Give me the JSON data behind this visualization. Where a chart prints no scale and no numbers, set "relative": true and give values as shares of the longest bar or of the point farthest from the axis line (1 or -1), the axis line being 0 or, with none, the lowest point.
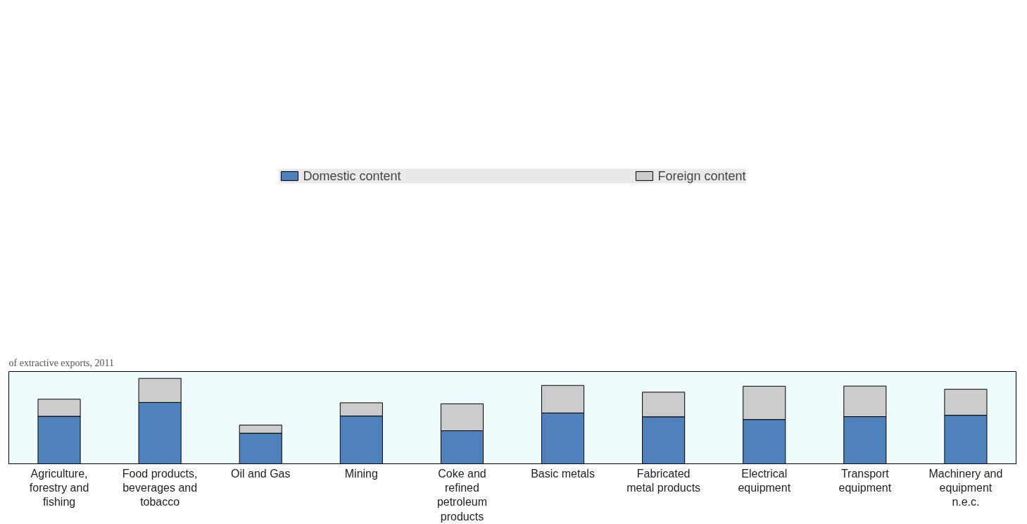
{
  "chart_data": {
    "type": "bar",
    "subtitle": "of extractive exports, 2011",
    "categories": [
      "Agriculture, forestry and fishing",
      "Food products, beverages and tobacco",
      "Oil and Gas",
      "Mining",
      "Coke and refined petroleum products",
      "Basic metals",
      "Fabricated metal products",
      "Electrical equipment",
      "Transport equipment",
      "Machinery and equipment n.e.c."
    ],
    "stacked": true,
    "relative": true,
    "legend": "top",
    "grid": false,
    "series": [
      {
        "name": "Domestic content",
        "color": "#4f81bd",
        "values": [
          0.556,
          0.718,
          0.358,
          0.559,
          0.387,
          0.595,
          0.55,
          0.518,
          0.552,
          0.568
        ]
      },
      {
        "name": "Foreign content",
        "color": "#cccccc",
        "values": [
          0.2,
          0.282,
          0.095,
          0.155,
          0.315,
          0.322,
          0.288,
          0.39,
          0.358,
          0.304
        ]
      }
    ]
  }
}
